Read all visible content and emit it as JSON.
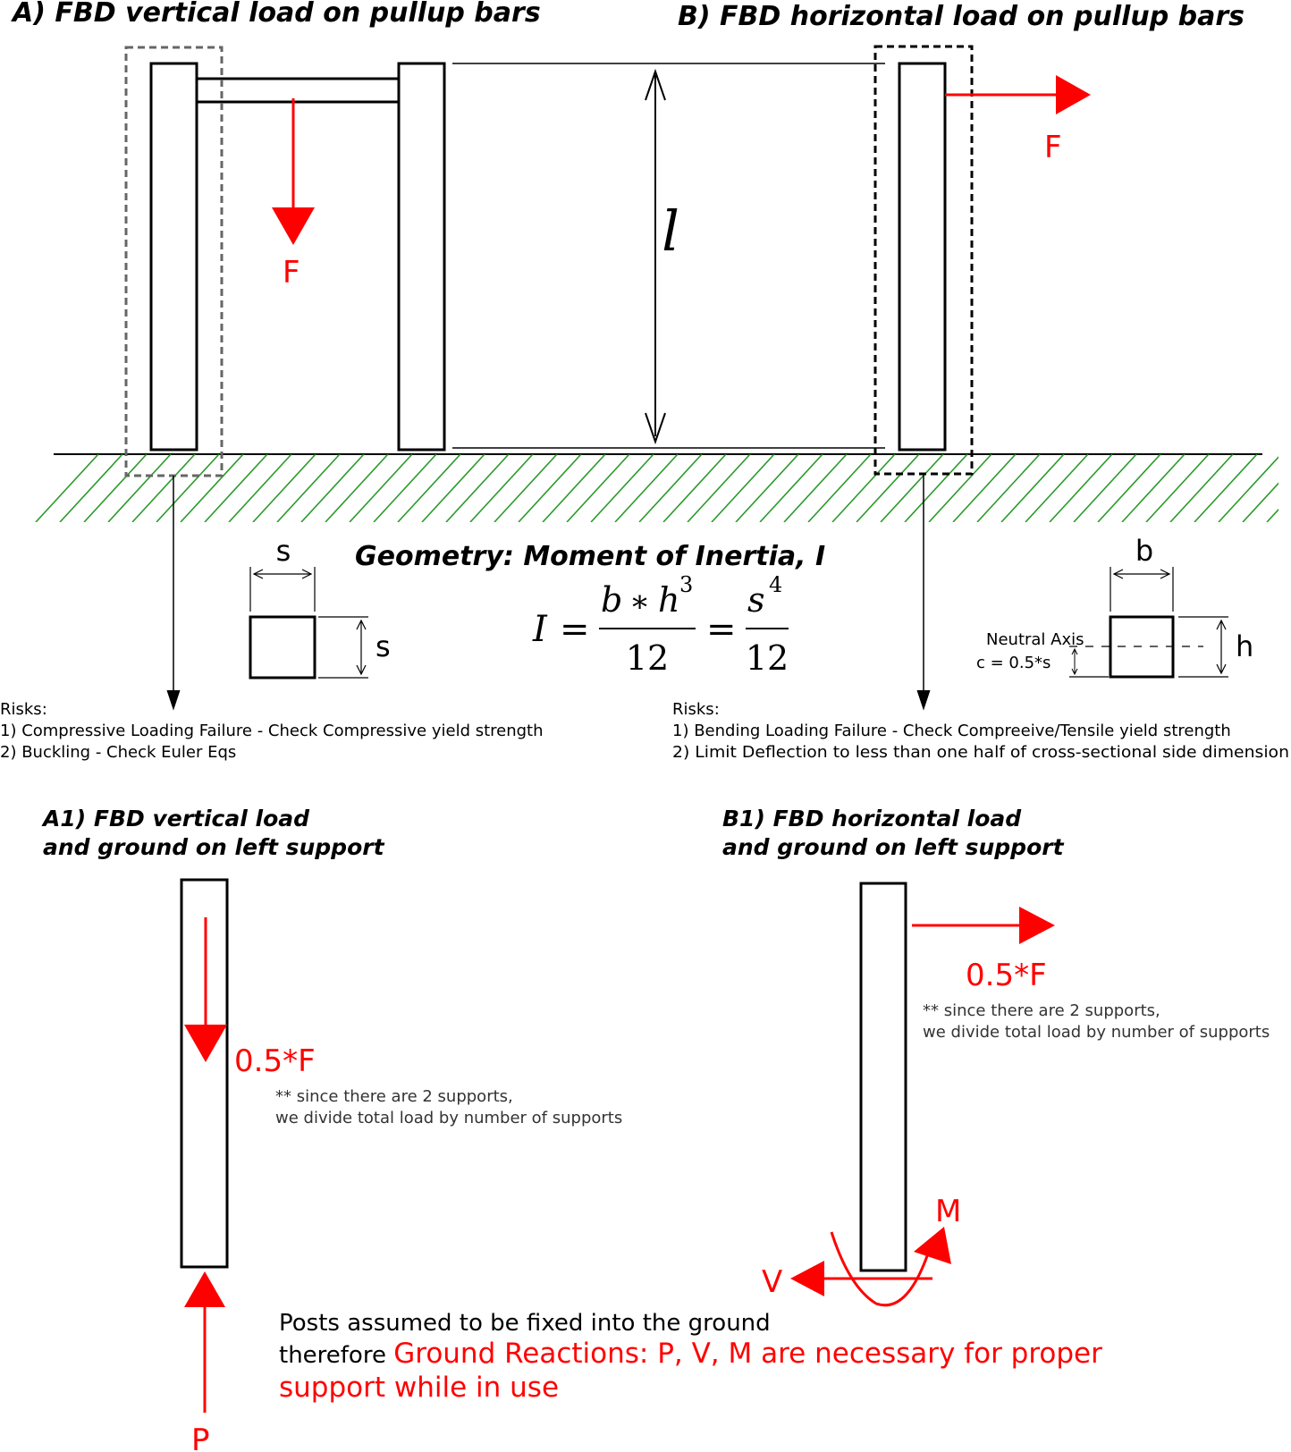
{
  "panel_a": {
    "title": "A) FBD vertical load on pullup bars",
    "force_label": "F",
    "length_label": "l"
  },
  "panel_b": {
    "title": "B) FBD horizontal load on pullup bars",
    "force_label": "F"
  },
  "geometry": {
    "title": "Geometry: Moment of Inertia, I",
    "left_section": {
      "width_label": "s",
      "height_label": "s"
    },
    "right_section": {
      "width_label": "b",
      "height_label": "h",
      "neutral_axis_label": "Neutral Axis",
      "c_label": "c = 0.5*s"
    },
    "formula": {
      "lhs": "I",
      "eq": "=",
      "num1_b": "b",
      "num1_star": "∗",
      "num1_h": "h",
      "num1_exp": "3",
      "den1": "12",
      "num2_s": "s",
      "num2_exp": "4",
      "den2": "12"
    }
  },
  "risks_a": {
    "heading": "Risks:",
    "items": [
      "1) Compressive Loading Failure - Check Compressive yield strength",
      "2) Buckling - Check Euler Eqs"
    ]
  },
  "risks_b": {
    "heading": "Risks:",
    "items": [
      "1) Bending Loading Failure - Check Compreeive/Tensile yield strength",
      "2) Limit Deflection to less than one half of cross-sectional side dimension"
    ]
  },
  "panel_a1": {
    "title_line1": "A1) FBD vertical load",
    "title_line2": "and ground on left support",
    "load_label": "0.5*F",
    "note_line1": "** since there are 2 supports,",
    "note_line2": "we divide total load by number of supports",
    "reaction_label": "P"
  },
  "panel_b1": {
    "title_line1": "B1) FBD horizontal load",
    "title_line2": "and ground on left support",
    "load_label": "0.5*F",
    "note_line1": "** since there are 2 supports,",
    "note_line2": "we divide total load by number of supports",
    "shear_label": "V",
    "moment_label": "M"
  },
  "footer": {
    "line1": "Posts assumed to be fixed into the ground",
    "line2_prefix": "therefore ",
    "line2_red": "Ground Reactions: P, V, M are necessary for proper",
    "line3_red": "support while in use"
  },
  "colors": {
    "force": "#ff0000",
    "ground_hatch": "#2a9a2a",
    "outline": "#000000",
    "dashed_box_a": "#666666",
    "dashed_box_b": "#000000"
  }
}
